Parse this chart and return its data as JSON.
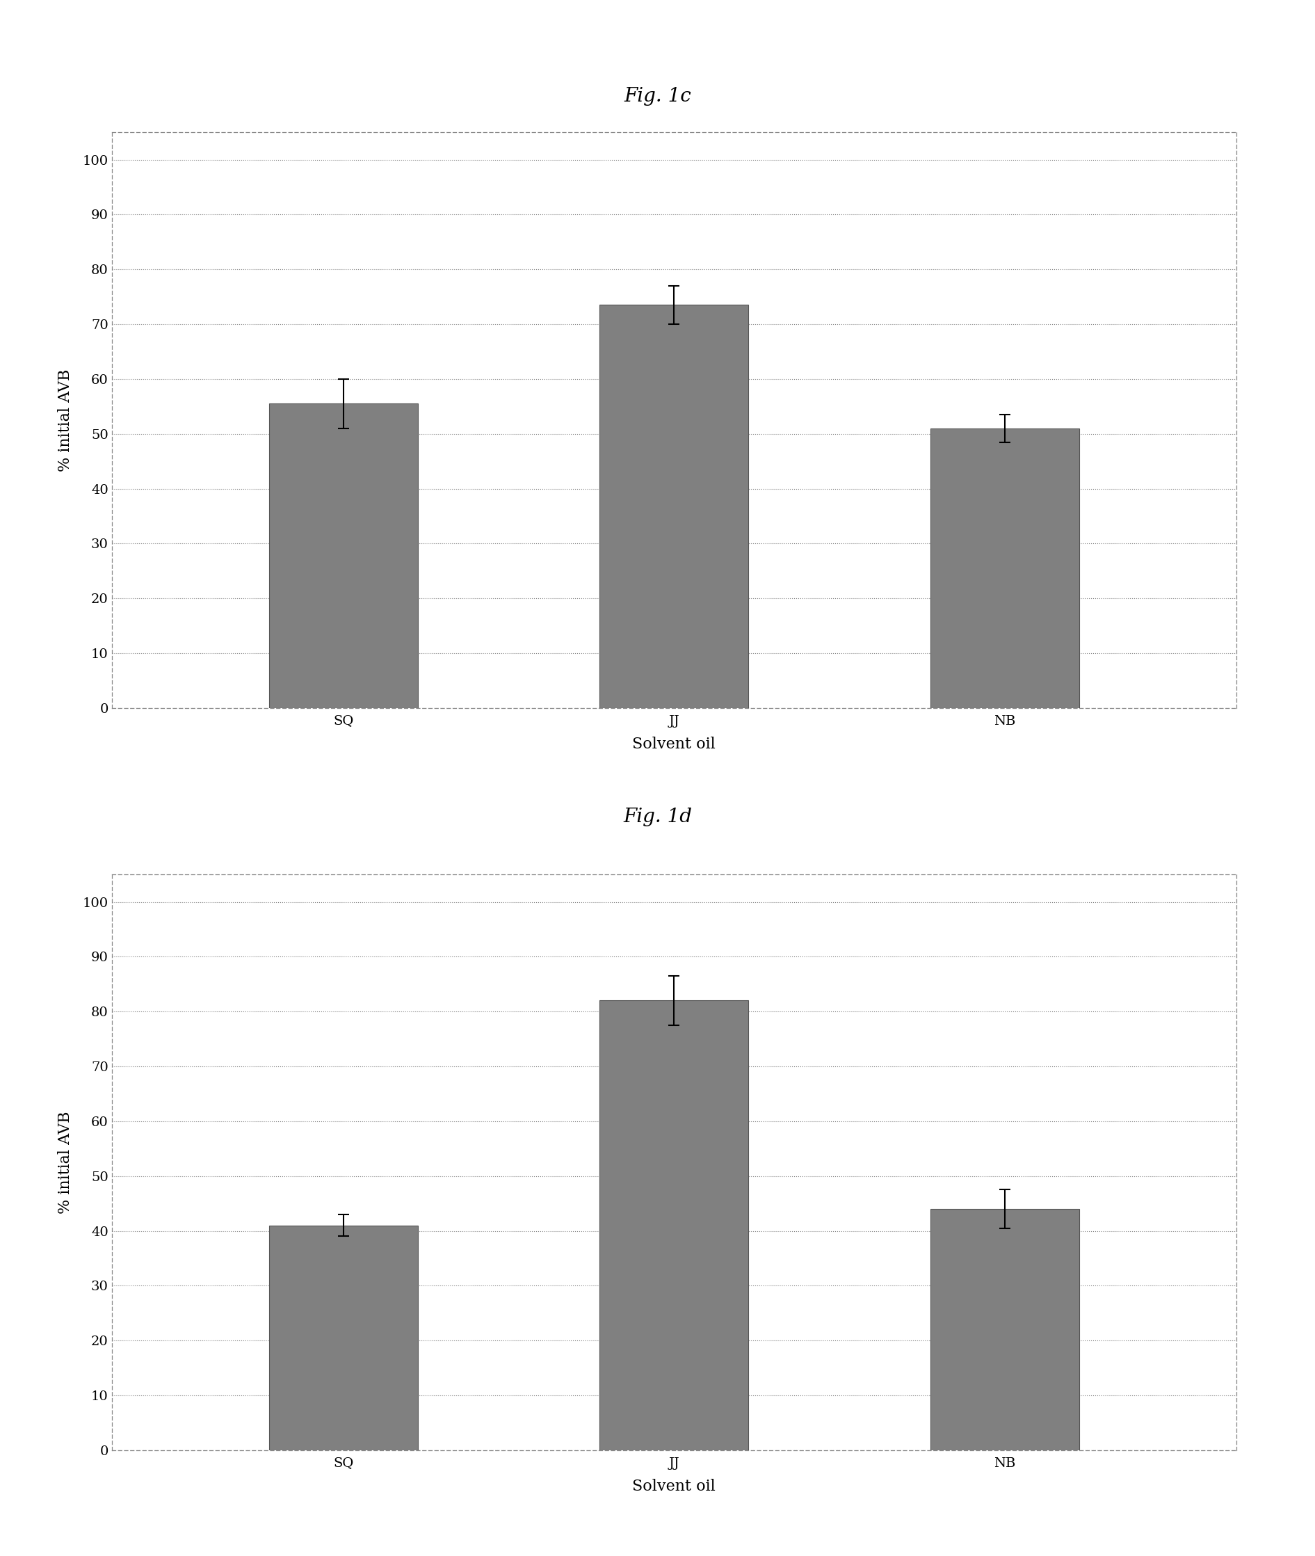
{
  "fig1c": {
    "title": "Fig. 1c",
    "categories": [
      "SQ",
      "JJ",
      "NB"
    ],
    "values": [
      55.5,
      73.5,
      51.0
    ],
    "errors": [
      4.5,
      3.5,
      2.5
    ],
    "xlabel": "Solvent oil",
    "ylabel": "% initial AVB",
    "ylim": [
      0,
      105
    ],
    "yticks": [
      0,
      10,
      20,
      30,
      40,
      50,
      60,
      70,
      80,
      90,
      100
    ]
  },
  "fig1d": {
    "title": "Fig. 1d",
    "categories": [
      "SQ",
      "JJ",
      "NB"
    ],
    "values": [
      41.0,
      82.0,
      44.0
    ],
    "errors": [
      2.0,
      4.5,
      3.5
    ],
    "xlabel": "Solvent oil",
    "ylabel": "% initial AVB",
    "ylim": [
      0,
      105
    ],
    "yticks": [
      0,
      10,
      20,
      30,
      40,
      50,
      60,
      70,
      80,
      90,
      100
    ]
  },
  "bar_color": "#808080",
  "bar_edgecolor": "#555555",
  "bar_width": 0.45,
  "background_color": "#ffffff",
  "title_fontsize": 20,
  "axis_label_fontsize": 16,
  "tick_fontsize": 14,
  "figure_width": 18.91,
  "figure_height": 22.37
}
